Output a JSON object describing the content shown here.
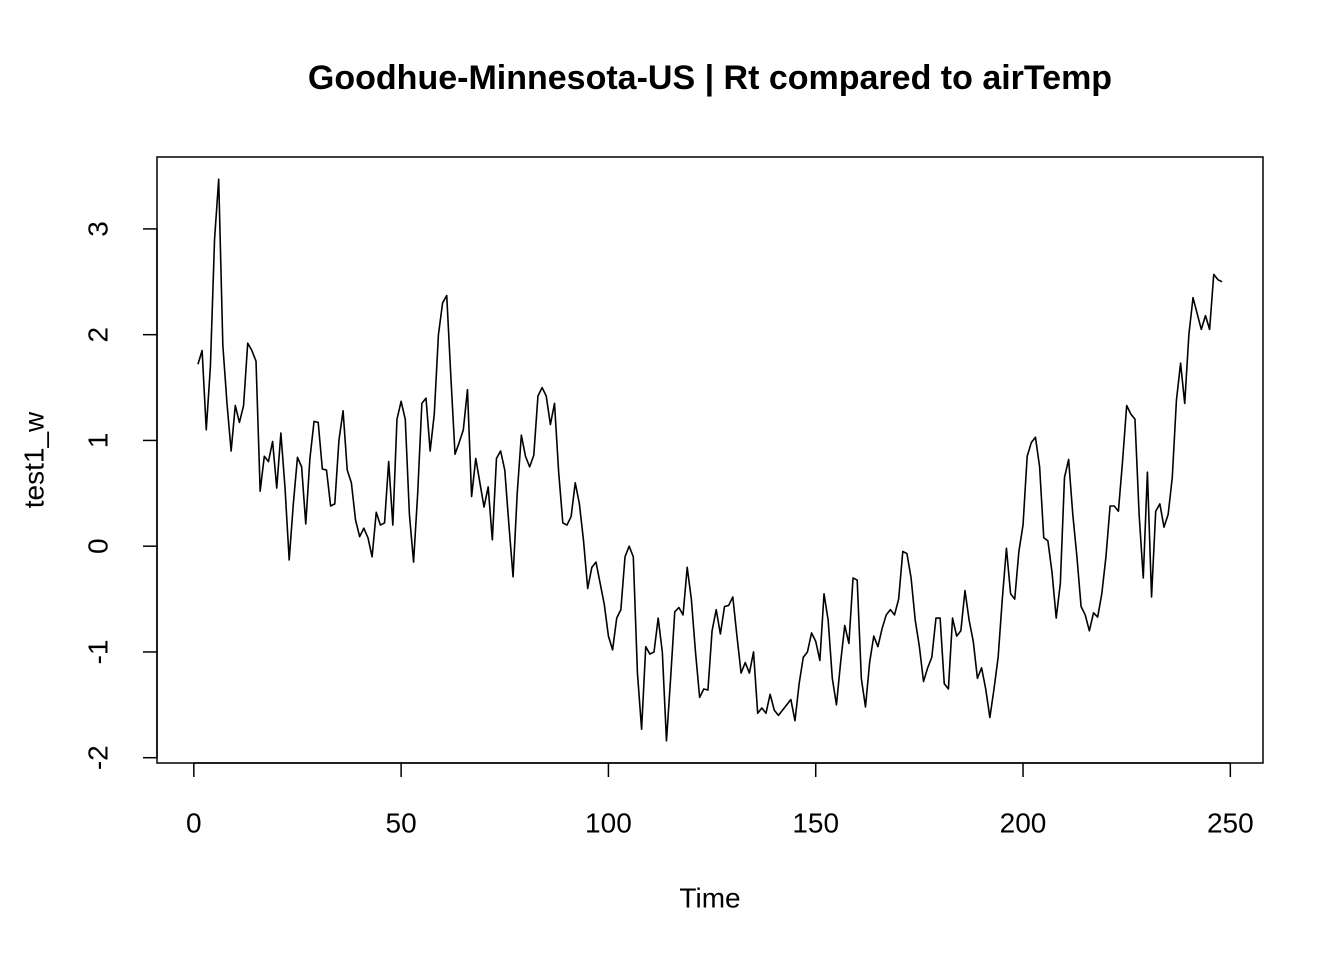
{
  "chart_data": {
    "type": "line",
    "title": "Goodhue-Minnesota-US | Rt compared to airTemp",
    "x_label": "Time",
    "y_label": "test1_w",
    "color": "#000000",
    "x": [
      1,
      2,
      3,
      4,
      5,
      6,
      7,
      8,
      9,
      10,
      11,
      12,
      13,
      14,
      15,
      16,
      17,
      18,
      19,
      20,
      21,
      22,
      23,
      24,
      25,
      26,
      27,
      28,
      29,
      30,
      31,
      32,
      33,
      34,
      35,
      36,
      37,
      38,
      39,
      40,
      41,
      42,
      43,
      44,
      45,
      46,
      47,
      48,
      49,
      50,
      51,
      52,
      53,
      54,
      55,
      56,
      57,
      58,
      59,
      60,
      61,
      62,
      63,
      64,
      65,
      66,
      67,
      68,
      69,
      70,
      71,
      72,
      73,
      74,
      75,
      76,
      77,
      78,
      79,
      80,
      81,
      82,
      83,
      84,
      85,
      86,
      87,
      88,
      89,
      90,
      91,
      92,
      93,
      94,
      95,
      96,
      97,
      98,
      99,
      100,
      101,
      102,
      103,
      104,
      105,
      106,
      107,
      108,
      109,
      110,
      111,
      112,
      113,
      114,
      115,
      116,
      117,
      118,
      119,
      120,
      121,
      122,
      123,
      124,
      125,
      126,
      127,
      128,
      129,
      130,
      131,
      132,
      133,
      134,
      135,
      136,
      137,
      138,
      139,
      140,
      141,
      142,
      143,
      144,
      145,
      146,
      147,
      148,
      149,
      150,
      151,
      152,
      153,
      154,
      155,
      156,
      157,
      158,
      159,
      160,
      161,
      162,
      163,
      164,
      165,
      166,
      167,
      168,
      169,
      170,
      171,
      172,
      173,
      174,
      175,
      176,
      177,
      178,
      179,
      180,
      181,
      182,
      183,
      184,
      185,
      186,
      187,
      188,
      189,
      190,
      191,
      192,
      193,
      194,
      195,
      196,
      197,
      198,
      199,
      200,
      201,
      202,
      203,
      204,
      205,
      206,
      207,
      208,
      209,
      210,
      211,
      212,
      213,
      214,
      215,
      216,
      217,
      218,
      219,
      220,
      221,
      222,
      223,
      224,
      225,
      226,
      227,
      228,
      229,
      230,
      231,
      232,
      233,
      234,
      235,
      236,
      237,
      238,
      239,
      240,
      241,
      242,
      243,
      244,
      245,
      246,
      247,
      248
    ],
    "values": [
      1.72,
      1.85,
      1.1,
      1.7,
      2.9,
      3.47,
      1.9,
      1.35,
      0.9,
      1.33,
      1.17,
      1.33,
      1.92,
      1.85,
      1.75,
      0.52,
      0.85,
      0.8,
      0.99,
      0.55,
      1.07,
      0.55,
      -0.13,
      0.4,
      0.84,
      0.75,
      0.21,
      0.83,
      1.18,
      1.17,
      0.73,
      0.72,
      0.38,
      0.4,
      1.0,
      1.28,
      0.72,
      0.6,
      0.25,
      0.09,
      0.17,
      0.08,
      -0.1,
      0.32,
      0.2,
      0.22,
      0.8,
      0.2,
      1.2,
      1.37,
      1.2,
      0.3,
      -0.15,
      0.5,
      1.35,
      1.4,
      0.9,
      1.25,
      2.0,
      2.3,
      2.37,
      1.6,
      0.87,
      0.98,
      1.1,
      1.48,
      0.47,
      0.83,
      0.6,
      0.37,
      0.56,
      0.06,
      0.83,
      0.9,
      0.72,
      0.2,
      -0.29,
      0.5,
      1.05,
      0.85,
      0.75,
      0.86,
      1.42,
      1.5,
      1.42,
      1.15,
      1.35,
      0.7,
      0.22,
      0.2,
      0.28,
      0.6,
      0.4,
      0.05,
      -0.4,
      -0.2,
      -0.15,
      -0.35,
      -0.55,
      -0.85,
      -0.98,
      -0.68,
      -0.6,
      -0.1,
      0.0,
      -0.1,
      -1.2,
      -1.73,
      -0.95,
      -1.02,
      -1.0,
      -0.68,
      -1.0,
      -1.84,
      -1.25,
      -0.62,
      -0.58,
      -0.65,
      -0.2,
      -0.5,
      -1.0,
      -1.43,
      -1.35,
      -1.36,
      -0.8,
      -0.6,
      -0.83,
      -0.57,
      -0.56,
      -0.48,
      -0.85,
      -1.2,
      -1.1,
      -1.2,
      -1.0,
      -1.58,
      -1.53,
      -1.58,
      -1.4,
      -1.55,
      -1.6,
      -1.55,
      -1.5,
      -1.45,
      -1.65,
      -1.3,
      -1.05,
      -1.0,
      -0.82,
      -0.9,
      -1.08,
      -0.45,
      -0.7,
      -1.25,
      -1.5,
      -1.1,
      -0.75,
      -0.92,
      -0.3,
      -0.32,
      -1.25,
      -1.52,
      -1.1,
      -0.85,
      -0.95,
      -0.78,
      -0.65,
      -0.6,
      -0.65,
      -0.5,
      -0.05,
      -0.07,
      -0.3,
      -0.7,
      -0.95,
      -1.28,
      -1.15,
      -1.05,
      -0.68,
      -0.68,
      -1.3,
      -1.35,
      -0.68,
      -0.85,
      -0.8,
      -0.42,
      -0.7,
      -0.9,
      -1.25,
      -1.15,
      -1.35,
      -1.62,
      -1.35,
      -1.05,
      -0.5,
      -0.02,
      -0.45,
      -0.5,
      -0.05,
      0.2,
      0.85,
      0.98,
      1.03,
      0.75,
      0.08,
      0.05,
      -0.25,
      -0.68,
      -0.35,
      0.65,
      0.82,
      0.3,
      -0.1,
      -0.57,
      -0.65,
      -0.8,
      -0.63,
      -0.67,
      -0.45,
      -0.1,
      0.38,
      0.38,
      0.33,
      0.8,
      1.33,
      1.25,
      1.2,
      0.3,
      -0.3,
      0.7,
      -0.48,
      0.33,
      0.4,
      0.18,
      0.3,
      0.65,
      1.38,
      1.73,
      1.35,
      2.0,
      2.35,
      2.2,
      2.05,
      2.18,
      2.05,
      2.57,
      2.52,
      2.5
    ],
    "xlim": [
      -8.88,
      257.88
    ],
    "ylim": [
      -2.05,
      3.68
    ],
    "xticks": [
      0,
      50,
      100,
      150,
      200,
      250
    ],
    "yticks": [
      -2,
      -1,
      0,
      1,
      2,
      3
    ]
  }
}
